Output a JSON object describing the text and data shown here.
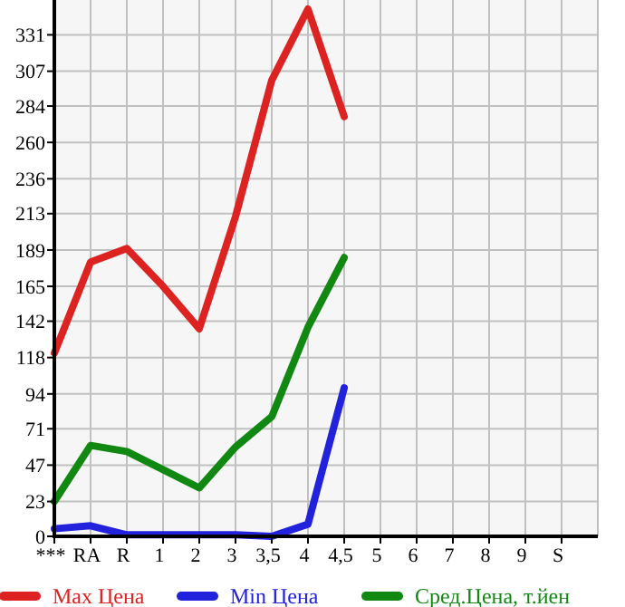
{
  "chart_data": {
    "type": "line",
    "categories": [
      "***",
      "RA",
      "R",
      "1",
      "2",
      "3",
      "3,5",
      "4",
      "4,5",
      "5",
      "6",
      "7",
      "8",
      "9",
      "S"
    ],
    "series": [
      {
        "name": "Max Цена",
        "color": "#dd2222",
        "values": [
          121,
          181,
          190,
          165,
          137,
          211,
          301,
          348,
          277,
          null,
          null,
          null,
          null,
          null,
          null
        ]
      },
      {
        "name": "Min Цена",
        "color": "#2222dd",
        "values": [
          5,
          7,
          1,
          1,
          1,
          1,
          0,
          8,
          98,
          null,
          null,
          null,
          null,
          null,
          null
        ]
      },
      {
        "name": "Сред.Цена, т.йен",
        "color": "#118811",
        "values": [
          23,
          60,
          56,
          44,
          32,
          59,
          79,
          138,
          184,
          null,
          null,
          null,
          null,
          null,
          null
        ]
      }
    ],
    "ylim": [
      0,
      354
    ],
    "yticks": [
      0,
      23,
      47,
      71,
      94,
      118,
      142,
      165,
      189,
      213,
      236,
      260,
      284,
      307,
      331
    ],
    "grid": true,
    "legend": "bottom",
    "marker": "none",
    "line_style": "solid"
  }
}
